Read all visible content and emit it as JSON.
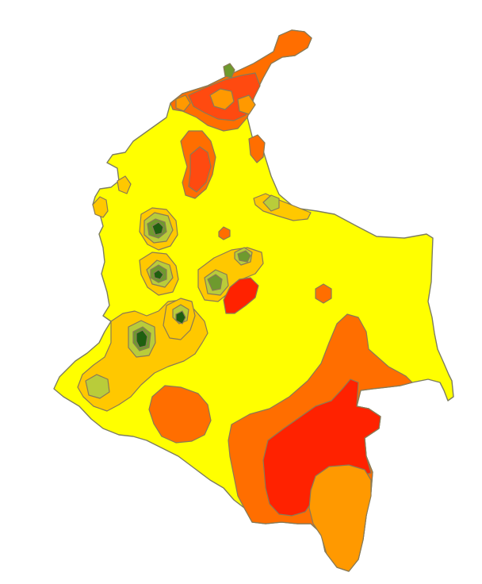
{
  "map": {
    "subject": "Colombia",
    "palette": {
      "yellow": "#FFFF00",
      "yellow_orange": "#FFC800",
      "light_orange": "#FF9900",
      "orange": "#FF6E00",
      "red_orange": "#FF4A10",
      "red": "#FF2200",
      "light_green": "#B9CC3A",
      "mid_green": "#6E9A2E",
      "dark_green": "#1F5F10",
      "border": "#8A7A55",
      "background": "#FFFFFF"
    }
  }
}
